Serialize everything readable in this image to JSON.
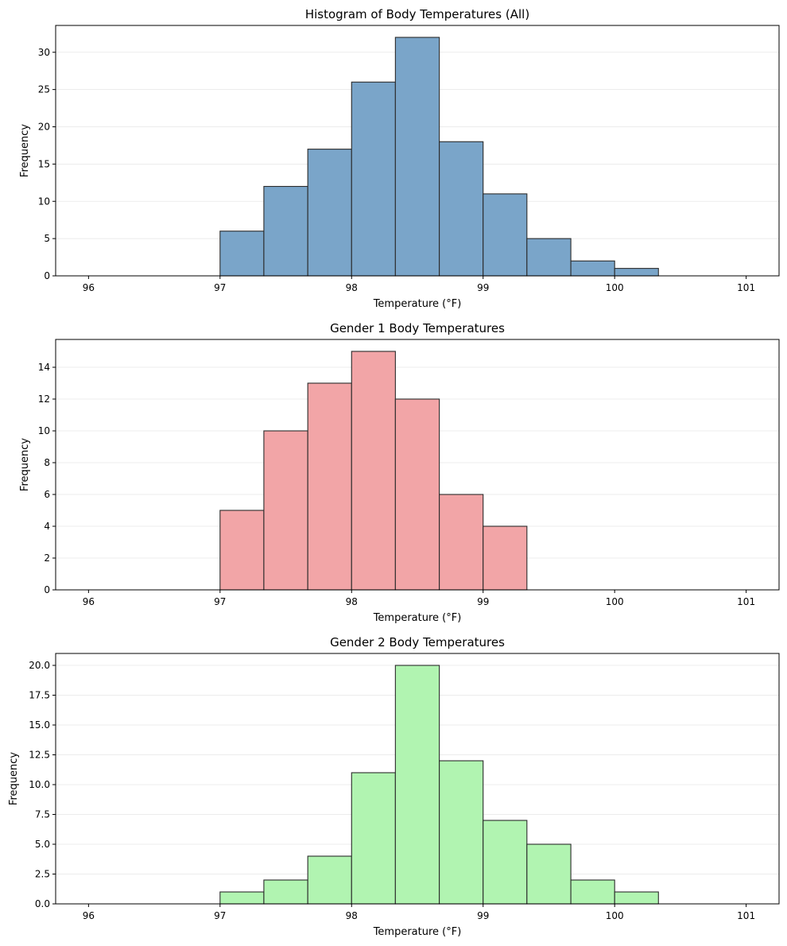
{
  "chart_data": [
    {
      "type": "bar",
      "title": "Histogram of Body Temperatures (All)",
      "xlabel": "Temperature (°F)",
      "ylabel": "Frequency",
      "bin_edges": [
        96.0,
        96.333,
        96.667,
        97.0,
        97.333,
        97.667,
        98.0,
        98.333,
        98.667,
        99.0,
        99.333,
        99.667,
        100.0,
        100.333,
        100.667,
        101.0
      ],
      "values": [
        0,
        0,
        0,
        6,
        12,
        17,
        26,
        32,
        18,
        11,
        5,
        2,
        1,
        0,
        0
      ],
      "xlim": [
        95.75,
        101.25
      ],
      "ylim": [
        0,
        33.6
      ],
      "xticks": [
        96,
        97,
        98,
        99,
        100,
        101
      ],
      "yticks": [
        0,
        5,
        10,
        15,
        20,
        25,
        30
      ],
      "ytick_labels": [
        "0",
        "5",
        "10",
        "15",
        "20",
        "25",
        "30"
      ],
      "grid": "y",
      "color": "#7aa5c9"
    },
    {
      "type": "bar",
      "title": "Gender 1 Body Temperatures",
      "xlabel": "Temperature (°F)",
      "ylabel": "Frequency",
      "bin_edges": [
        96.0,
        96.333,
        96.667,
        97.0,
        97.333,
        97.667,
        98.0,
        98.333,
        98.667,
        99.0,
        99.333,
        99.667,
        100.0,
        100.333,
        100.667,
        101.0
      ],
      "values": [
        0,
        0,
        0,
        5,
        10,
        13,
        15,
        12,
        6,
        4,
        0,
        0,
        0,
        0,
        0
      ],
      "xlim": [
        95.75,
        101.25
      ],
      "ylim": [
        0,
        15.75
      ],
      "xticks": [
        96,
        97,
        98,
        99,
        100,
        101
      ],
      "yticks": [
        0,
        2,
        4,
        6,
        8,
        10,
        12,
        14
      ],
      "ytick_labels": [
        "0",
        "2",
        "4",
        "6",
        "8",
        "10",
        "12",
        "14"
      ],
      "grid": "y",
      "color": "#f2a5a7"
    },
    {
      "type": "bar",
      "title": "Gender 2 Body Temperatures",
      "xlabel": "Temperature (°F)",
      "ylabel": "Frequency",
      "bin_edges": [
        96.0,
        96.333,
        96.667,
        97.0,
        97.333,
        97.667,
        98.0,
        98.333,
        98.667,
        99.0,
        99.333,
        99.667,
        100.0,
        100.333,
        100.667,
        101.0
      ],
      "values": [
        0,
        0,
        0,
        1,
        2,
        4,
        11,
        20,
        12,
        7,
        5,
        2,
        1,
        0,
        0
      ],
      "xlim": [
        95.75,
        101.25
      ],
      "ylim": [
        0,
        21.0
      ],
      "xticks": [
        96,
        97,
        98,
        99,
        100,
        101
      ],
      "yticks": [
        0,
        2.5,
        5,
        7.5,
        10,
        12.5,
        15,
        17.5,
        20
      ],
      "ytick_labels": [
        "0.0",
        "2.5",
        "5.0",
        "7.5",
        "10.0",
        "12.5",
        "15.0",
        "17.5",
        "20.0"
      ],
      "grid": "y",
      "color": "#b1f4b1"
    }
  ]
}
